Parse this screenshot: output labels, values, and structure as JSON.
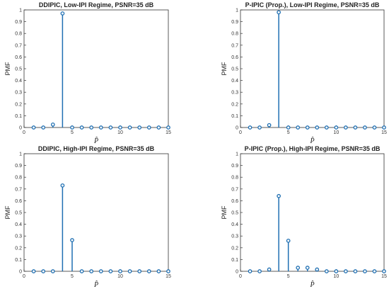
{
  "colors": {
    "stem": "#1f6fb2",
    "axis": "#333333"
  },
  "chart_data": [
    {
      "type": "stem",
      "title": "DDIPIC, Low-IPI Regime, PSNR=35 dB",
      "xlabel": "P̂",
      "ylabel": "PMF",
      "xlim": [
        0,
        15
      ],
      "ylim": [
        0,
        1
      ],
      "xticks": [
        "0",
        "5",
        "10",
        "15"
      ],
      "yticks": [
        "0",
        "0.1",
        "0.2",
        "0.3",
        "0.4",
        "0.5",
        "0.6",
        "0.7",
        "0.8",
        "0.9",
        "1"
      ],
      "x": [
        1,
        2,
        3,
        4,
        5,
        6,
        7,
        8,
        9,
        10,
        11,
        12,
        13,
        14,
        15
      ],
      "values": [
        0,
        0,
        0.025,
        0.97,
        0,
        0,
        0,
        0,
        0,
        0,
        0,
        0,
        0,
        0,
        0
      ]
    },
    {
      "type": "stem",
      "title": "P-IPIC (Prop.), Low-IPI Regime, PSNR=35 dB",
      "xlabel": "P̂",
      "ylabel": "PMF",
      "xlim": [
        0,
        15
      ],
      "ylim": [
        0,
        1
      ],
      "xticks": [
        "0",
        "5",
        "10",
        "15"
      ],
      "yticks": [
        "0",
        "0.1",
        "0.2",
        "0.3",
        "0.4",
        "0.5",
        "0.6",
        "0.7",
        "0.8",
        "0.9",
        "1"
      ],
      "x": [
        1,
        2,
        3,
        4,
        5,
        6,
        7,
        8,
        9,
        10,
        11,
        12,
        13,
        14,
        15
      ],
      "values": [
        0,
        0,
        0.02,
        0.98,
        0,
        0,
        0,
        0,
        0,
        0,
        0,
        0,
        0,
        0,
        0
      ]
    },
    {
      "type": "stem",
      "title": "DDIPIC, High-IPI Regime, PSNR=35 dB",
      "xlabel": "P̂",
      "ylabel": "PMF",
      "xlim": [
        0,
        15
      ],
      "ylim": [
        0,
        1
      ],
      "xticks": [
        "0",
        "5",
        "10",
        "15"
      ],
      "yticks": [
        "0",
        "0.1",
        "0.2",
        "0.3",
        "0.4",
        "0.5",
        "0.6",
        "0.7",
        "0.8",
        "0.9",
        "1"
      ],
      "x": [
        1,
        2,
        3,
        4,
        5,
        6,
        7,
        8,
        9,
        10,
        11,
        12,
        13,
        14,
        15
      ],
      "values": [
        0,
        0,
        0,
        0.73,
        0.265,
        0,
        0,
        0,
        0,
        0,
        0,
        0,
        0,
        0,
        0
      ]
    },
    {
      "type": "stem",
      "title": "P-IPIC (Prop.), High-IPI Regime, PSNR=35 dB",
      "xlabel": "P̂",
      "ylabel": "PMF",
      "xlim": [
        0,
        15
      ],
      "ylim": [
        0,
        1
      ],
      "xticks": [
        "0",
        "5",
        "10",
        "15"
      ],
      "yticks": [
        "0",
        "0.1",
        "0.2",
        "0.3",
        "0.4",
        "0.5",
        "0.6",
        "0.7",
        "0.8",
        "0.9",
        "1"
      ],
      "x": [
        1,
        2,
        3,
        4,
        5,
        6,
        7,
        8,
        9,
        10,
        11,
        12,
        13,
        14,
        15
      ],
      "values": [
        0,
        0,
        0.015,
        0.64,
        0.26,
        0.03,
        0.03,
        0.015,
        0,
        0,
        0,
        0,
        0,
        0,
        0
      ]
    }
  ]
}
